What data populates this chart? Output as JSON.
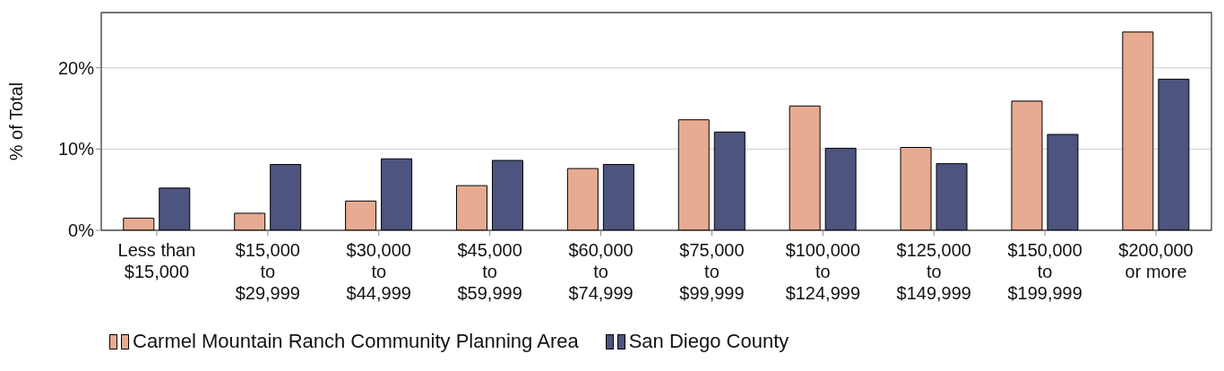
{
  "chart_data": {
    "type": "bar",
    "ylabel": "% of Total",
    "categories": [
      "Less than\n$15,000",
      "$15,000\nto\n$29,999",
      "$30,000\nto\n$44,999",
      "$45,000\nto\n$59,999",
      "$60,000\nto\n$74,999",
      "$75,000\nto\n$99,999",
      "$100,000\nto\n$124,999",
      "$125,000\nto\n$149,999",
      "$150,000\nto\n$199,999",
      "$200,000\nor more"
    ],
    "series": [
      {
        "name": "Carmel Mountain Ranch Community Planning Area",
        "color": "#e7ab91",
        "values": [
          1.5,
          2.1,
          3.6,
          5.5,
          7.6,
          13.6,
          15.3,
          10.2,
          15.9,
          24.4
        ]
      },
      {
        "name": "San Diego County",
        "color": "#4d547f",
        "values": [
          5.2,
          8.1,
          8.8,
          8.6,
          8.1,
          12.1,
          10.1,
          8.2,
          11.8,
          18.6
        ]
      }
    ],
    "ylim": [
      0,
      26.8
    ],
    "yticks": [
      {
        "value": 0,
        "label": "0%"
      },
      {
        "value": 10,
        "label": "10%"
      },
      {
        "value": 20,
        "label": "20%"
      }
    ],
    "grid": "y",
    "legend": "bottom left"
  }
}
